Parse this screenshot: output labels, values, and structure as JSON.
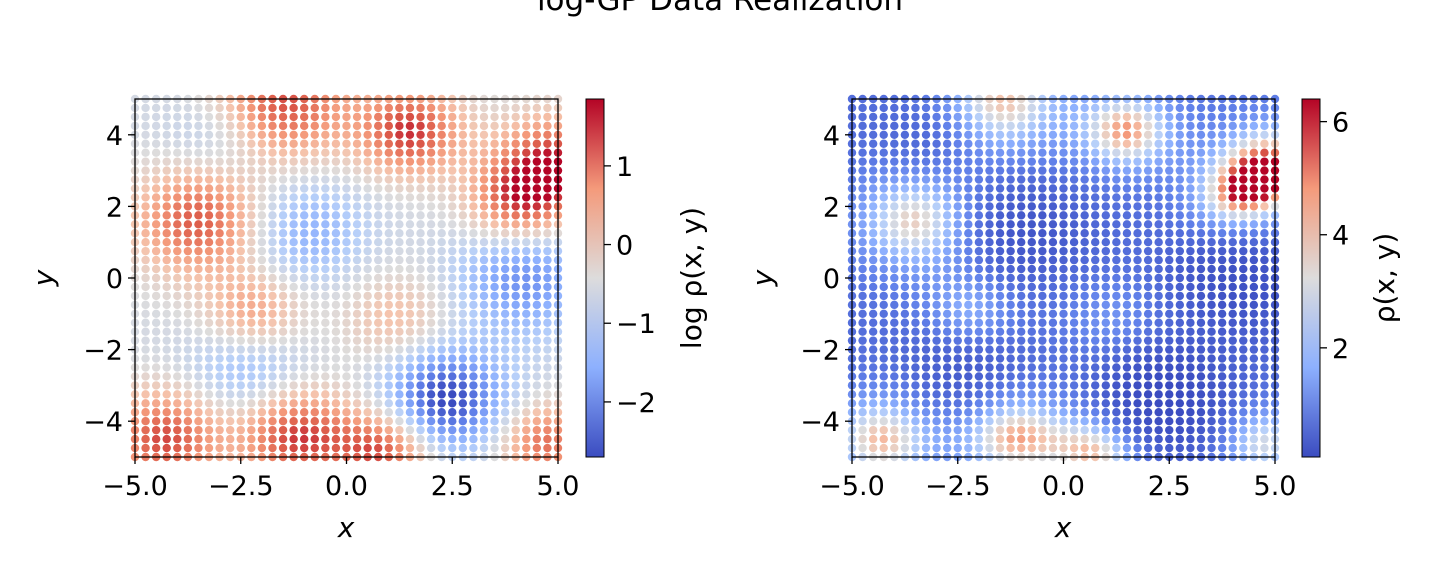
{
  "figure": {
    "title": "log-GP Data Realization"
  },
  "chart_data": [
    {
      "type": "scatter",
      "xlabel": "x",
      "ylabel": "y",
      "xlim": [
        -5,
        5
      ],
      "ylim": [
        -5,
        5
      ],
      "x_ticks": [
        "−5.0",
        "−2.5",
        "0.0",
        "2.5",
        "5.0"
      ],
      "y_ticks": [
        "−4",
        "−2",
        "0",
        "2",
        "4"
      ],
      "grid": false,
      "colormap": "coolwarm",
      "colorbar": {
        "label": "log ρ(x, y)",
        "range": [
          -2.7,
          1.85
        ],
        "ticks": [
          "1",
          "0",
          "−1",
          "−2"
        ],
        "tick_values": [
          1,
          0,
          -1,
          -2
        ]
      },
      "field": {
        "kind": "log",
        "grid_points": 41,
        "base": -0.55,
        "features": [
          {
            "x": -1.5,
            "y": 4.9,
            "amp": 2.0,
            "sigma": 1.1
          },
          {
            "x": 1.5,
            "y": 4.1,
            "amp": 2.1,
            "sigma": 0.85
          },
          {
            "x": 4.9,
            "y": 3.1,
            "amp": 2.3,
            "sigma": 0.95
          },
          {
            "x": 4.0,
            "y": 2.1,
            "amp": 1.6,
            "sigma": 0.8
          },
          {
            "x": -3.5,
            "y": 1.6,
            "amp": 1.9,
            "sigma": 1.05
          },
          {
            "x": -2.2,
            "y": -1.0,
            "amp": 1.2,
            "sigma": 0.8
          },
          {
            "x": 1.2,
            "y": -1.2,
            "amp": 0.8,
            "sigma": 0.9
          },
          {
            "x": -4.3,
            "y": -4.5,
            "amp": 2.0,
            "sigma": 0.95
          },
          {
            "x": -1.2,
            "y": -4.4,
            "amp": 2.1,
            "sigma": 0.95
          },
          {
            "x": 0.9,
            "y": -4.8,
            "amp": 2.0,
            "sigma": 0.8
          },
          {
            "x": 4.7,
            "y": -4.6,
            "amp": 1.7,
            "sigma": 0.75
          },
          {
            "x": 2.3,
            "y": -3.4,
            "amp": -2.3,
            "sigma": 1.0
          },
          {
            "x": 4.2,
            "y": 0.0,
            "amp": -1.4,
            "sigma": 1.1
          },
          {
            "x": -1.0,
            "y": 1.3,
            "amp": -1.0,
            "sigma": 1.0
          },
          {
            "x": -2.3,
            "y": -2.6,
            "amp": -0.9,
            "sigma": 1.0
          },
          {
            "x": -3.0,
            "y": 3.9,
            "amp": -0.6,
            "sigma": 0.9
          }
        ]
      }
    },
    {
      "type": "scatter",
      "xlabel": "x",
      "ylabel": "y",
      "xlim": [
        -5,
        5
      ],
      "ylim": [
        -5,
        5
      ],
      "x_ticks": [
        "−5.0",
        "−2.5",
        "0.0",
        "2.5",
        "5.0"
      ],
      "y_ticks": [
        "−4",
        "−2",
        "0",
        "2",
        "4"
      ],
      "grid": false,
      "colormap": "coolwarm",
      "colorbar": {
        "label": "ρ(x, y)",
        "range": [
          0.07,
          6.4
        ],
        "ticks": [
          "6",
          "4",
          "2"
        ],
        "tick_values": [
          6,
          4,
          2
        ]
      },
      "field": {
        "kind": "exp",
        "source": "exp of the log-density field shown in the left panel"
      }
    }
  ]
}
